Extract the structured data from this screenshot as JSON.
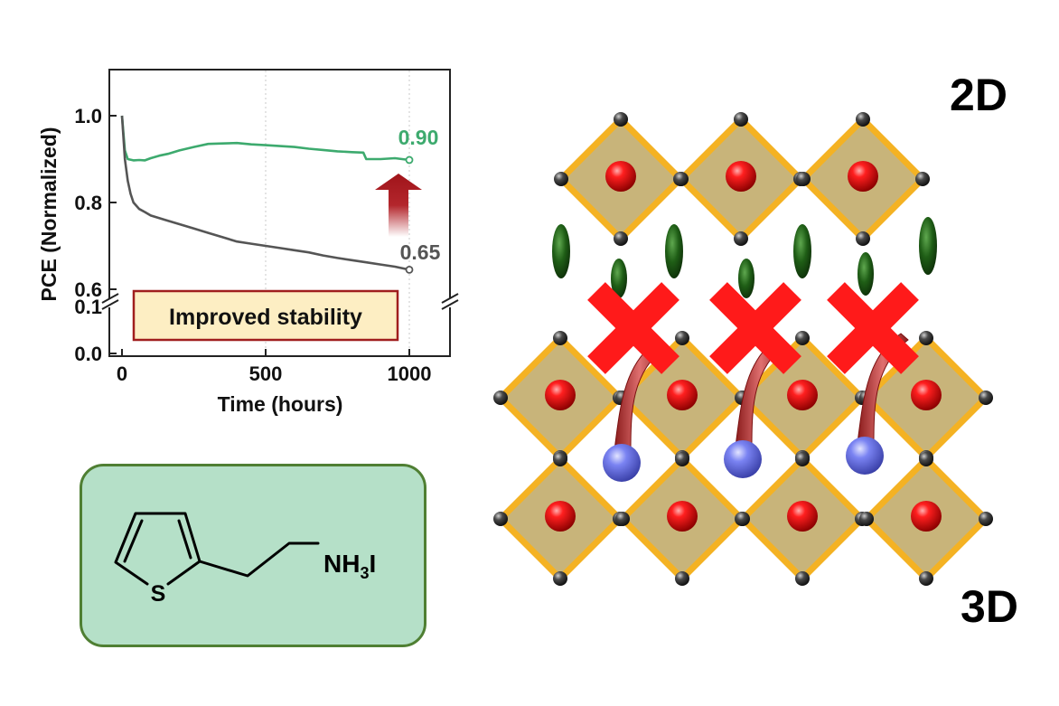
{
  "chart_data": {
    "type": "line",
    "title": "",
    "xlabel": "Time (hours)",
    "ylabel": "PCE (Normalized)",
    "xlim": [
      -20,
      1140
    ],
    "x_ticks": [
      0,
      500,
      1000
    ],
    "x_tick_labels": [
      "0",
      "500",
      "1000"
    ],
    "y_ticks_upper": [
      0.6,
      0.8,
      1.0
    ],
    "y_tick_labels_upper": [
      "0.6",
      "0.8",
      "1.0"
    ],
    "y_ticks_lower": [
      0.0,
      0.1
    ],
    "y_tick_labels_lower": [
      "0.0",
      "0.1"
    ],
    "ylim_upper": [
      0.6,
      1.1
    ],
    "ylim_lower": [
      0.0,
      0.1
    ],
    "grid": "vertical dotted at 500 and 1000",
    "series": [
      {
        "color": "#3daa6e",
        "end_label": "0.90",
        "x": [
          0,
          5,
          10,
          20,
          40,
          60,
          80,
          100,
          130,
          160,
          200,
          250,
          300,
          350,
          400,
          450,
          500,
          550,
          600,
          650,
          700,
          750,
          800,
          840,
          850,
          900,
          950,
          1000
        ],
        "y": [
          1.0,
          0.96,
          0.92,
          0.9,
          0.897,
          0.898,
          0.897,
          0.902,
          0.908,
          0.912,
          0.92,
          0.928,
          0.935,
          0.936,
          0.937,
          0.934,
          0.932,
          0.93,
          0.928,
          0.924,
          0.921,
          0.918,
          0.916,
          0.915,
          0.9,
          0.9,
          0.902,
          0.898
        ]
      },
      {
        "color": "#555555",
        "end_label": "0.65",
        "x": [
          0,
          5,
          10,
          20,
          30,
          40,
          60,
          80,
          100,
          150,
          200,
          250,
          300,
          350,
          400,
          450,
          500,
          550,
          600,
          650,
          700,
          750,
          800,
          850,
          900,
          950,
          1000
        ],
        "y": [
          1.0,
          0.95,
          0.9,
          0.85,
          0.82,
          0.8,
          0.785,
          0.778,
          0.77,
          0.76,
          0.75,
          0.74,
          0.73,
          0.72,
          0.71,
          0.705,
          0.7,
          0.695,
          0.69,
          0.685,
          0.678,
          0.672,
          0.667,
          0.662,
          0.657,
          0.652,
          0.645
        ]
      }
    ],
    "annotation": "Improved stability"
  },
  "colors": {
    "green_series": "#3daa6e",
    "gray_series": "#555555",
    "arrow": "#a0141a",
    "annotation_fill": "#fdeec3",
    "annotation_border": "#a01e1e",
    "octahedron_fill": "#c8b47a",
    "octahedron_edge": "#f4b223",
    "b_site": "#e00000",
    "x_site": "#2e2e2e",
    "spacer": "#1f5e16",
    "cation": "#6e78ee",
    "cross": "#ff1a1a",
    "chem_box_fill": "#b5e0c8",
    "chem_box_border": "#4f7f33"
  },
  "molecule": {
    "sulfur_label": "S",
    "ammonium_prefix": "NH",
    "ammonium_subscript": "3",
    "ammonium_suffix": "I"
  },
  "structure": {
    "label_2d": "2D",
    "label_3d": "3D"
  }
}
